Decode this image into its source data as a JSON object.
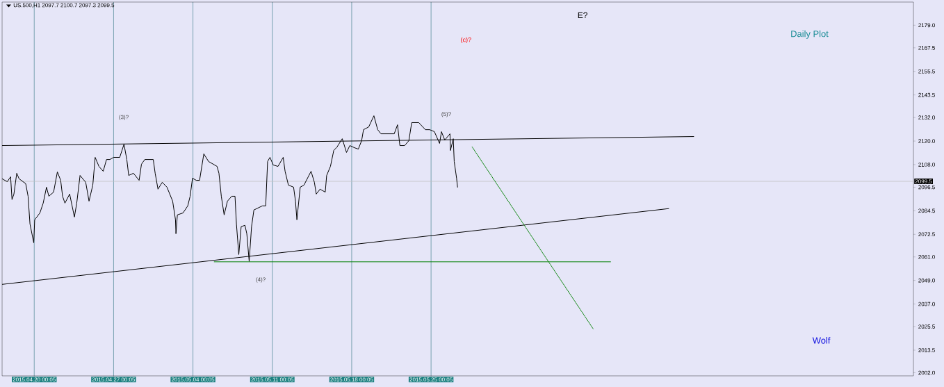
{
  "chart_data": {
    "type": "line",
    "title": "US.500,H1 2097.7 2100.7 2097.3 2099.5",
    "xlim": [
      "2015-04-17T04:05",
      "2015-07-06T13:05"
    ],
    "ylim": [
      2000.4,
      2190.8
    ],
    "xticks": [
      {
        "value": "2015-04-20T00:05",
        "label": "2015.04.20 00:05"
      },
      {
        "value": "2015-04-27T00:05",
        "label": "2015.04.27 00:05"
      },
      {
        "value": "2015-05-04T00:05",
        "label": "2015.05.04 00:05"
      },
      {
        "value": "2015-05-11T00:05",
        "label": "2015.05.11 00:05"
      },
      {
        "value": "2015-05-18T00:05",
        "label": "2015.05.18 00:05"
      },
      {
        "value": "2015-05-25T00:05",
        "label": "2015.05.25 00:05"
      }
    ],
    "yticks": [
      {
        "value": 2002,
        "label": "2002.0"
      },
      2013.5,
      2025.5,
      {
        "value": 2037,
        "label": "2037.0"
      },
      {
        "value": 2049,
        "label": "2049.0"
      },
      {
        "value": 2061,
        "label": "2061.0"
      },
      2072.5,
      2084.5,
      2096.5,
      {
        "value": 2108,
        "label": "2108.0"
      },
      {
        "value": 2120,
        "label": "2120.0"
      },
      {
        "value": 2132,
        "label": "2132.0"
      },
      2143.5,
      2155.5,
      2167.5,
      {
        "value": 2179,
        "label": "2179.0"
      }
    ],
    "grid": "x",
    "ref_lines": [
      {
        "axis": "y",
        "value": 2099.5,
        "label": "2099.5",
        "color": "#c0c0c0"
      }
    ],
    "annotations": [
      "(3)?",
      "(4)?",
      "(5)?",
      "(c)?",
      "E?",
      "Daily Plot",
      "Wolf"
    ],
    "series": [
      {
        "color": "#000000",
        "x": [
          "2015-04-17T04:05",
          "2015-04-17T15:05",
          "2015-04-17T22:05",
          "2015-04-18T01:05",
          "2015-04-18T05:05",
          "2015-04-18T11:05",
          "2015-04-18T16:05",
          "2015-04-19T06:05",
          "2015-04-19T11:05",
          "2015-04-19T15:05",
          "2015-04-19T23:05",
          "2015-04-20T01:05",
          "2015-04-20T12:05",
          "2015-04-20T19:05",
          "2015-04-21T02:05",
          "2015-04-21T07:05",
          "2015-04-21T17:05",
          "2015-04-22T01:05",
          "2015-04-22T08:05",
          "2015-04-22T12:05",
          "2015-04-22T17:05",
          "2015-04-23T03:05",
          "2015-04-23T10:05",
          "2015-04-23T13:05",
          "2015-04-23T18:05",
          "2015-04-24T01:05",
          "2015-04-24T13:05",
          "2015-04-24T20:05",
          "2015-04-25T04:05",
          "2015-04-25T09:05",
          "2015-04-25T17:05",
          "2015-04-26T02:05",
          "2015-04-26T09:05",
          "2015-04-26T16:05",
          "2015-04-27T00:05",
          "2015-04-27T13:05",
          "2015-04-27T22:05",
          "2015-04-28T04:05",
          "2015-04-28T08:05",
          "2015-04-28T18:05",
          "2015-04-29T06:05",
          "2015-04-29T11:05",
          "2015-04-29T18:05",
          "2015-04-30T12:05",
          "2015-04-30T16:05",
          "2015-04-30T22:05",
          "2015-05-01T07:05",
          "2015-05-01T17:05",
          "2015-05-02T05:05",
          "2015-05-02T11:05",
          "2015-05-02T12:05",
          "2015-05-02T15:05",
          "2015-05-03T03:05",
          "2015-05-03T13:05",
          "2015-05-03T18:05",
          "2015-05-03T23:05",
          "2015-05-04T07:05",
          "2015-05-04T14:05",
          "2015-05-04T23:05",
          "2015-05-05T09:05",
          "2015-05-06T03:05",
          "2015-05-06T07:05",
          "2015-05-06T12:05",
          "2015-05-06T18:05",
          "2015-05-07T01:05",
          "2015-05-07T10:05",
          "2015-05-07T17:05",
          "2015-05-07T20:05",
          "2015-05-08T01:05",
          "2015-05-08T06:05",
          "2015-05-08T14:05",
          "2015-05-08T18:05",
          "2015-05-08T23:05",
          "2015-05-09T04:05",
          "2015-05-09T09:05",
          "2015-05-10T03:05",
          "2015-05-10T10:05",
          "2015-05-10T14:05",
          "2015-05-10T19:05",
          "2015-05-11T02:05",
          "2015-05-11T12:05",
          "2015-05-11T23:05",
          "2015-05-12T03:05",
          "2015-05-12T10:05",
          "2015-05-12T21:05",
          "2015-05-13T01:05",
          "2015-05-13T04:05",
          "2015-05-13T11:05",
          "2015-05-13T19:05",
          "2015-05-14T10:05",
          "2015-05-14T17:05",
          "2015-05-14T21:05",
          "2015-05-15T05:05",
          "2015-05-15T16:05",
          "2015-05-15T19:05",
          "2015-05-16T03:05",
          "2015-05-16T10:05",
          "2015-05-16T17:05",
          "2015-05-17T04:05",
          "2015-05-17T13:05",
          "2015-05-17T20:05",
          "2015-05-18T06:05",
          "2015-05-18T14:05",
          "2015-05-18T21:05",
          "2015-05-19T01:05",
          "2015-05-19T12:05",
          "2015-05-19T23:05",
          "2015-05-20T07:05",
          "2015-05-20T14:05",
          "2015-05-21T05:05",
          "2015-05-21T18:05",
          "2015-05-22T01:05",
          "2015-05-22T06:05",
          "2015-05-22T16:05",
          "2015-05-23T01:05",
          "2015-05-23T07:05",
          "2015-05-23T22:05",
          "2015-05-24T12:05",
          "2015-05-24T21:05",
          "2015-05-25T07:05",
          "2015-05-25T18:05",
          "2015-05-25T22:05",
          "2015-05-26T05:05",
          "2015-05-26T16:05",
          "2015-05-26T17:05",
          "2015-05-26T23:05",
          "2015-05-27T01:05",
          "2015-05-27T06:05",
          "2015-05-27T08:05"
        ],
        "values": [
          2100.8,
          2099.3,
          2101.8,
          2090.2,
          2093.0,
          2103.6,
          2100.8,
          2098.3,
          2091.9,
          2077.8,
          2068.2,
          2079.9,
          2083.4,
          2088.4,
          2096.5,
          2091.9,
          2094.0,
          2104.3,
          2100.0,
          2091.9,
          2088.4,
          2093.0,
          2084.9,
          2081.3,
          2088.4,
          2102.5,
          2099.0,
          2089.4,
          2097.6,
          2111.7,
          2107.1,
          2104.6,
          2110.6,
          2110.6,
          2111.7,
          2111.7,
          2118.4,
          2110.6,
          2102.5,
          2103.6,
          2100.0,
          2108.2,
          2110.6,
          2110.6,
          2103.6,
          2095.5,
          2099.0,
          2096.5,
          2089.4,
          2079.9,
          2072.8,
          2082.4,
          2083.4,
          2087.0,
          2091.9,
          2101.1,
          2100.0,
          2100.0,
          2113.5,
          2109.6,
          2107.1,
          2103.6,
          2091.9,
          2082.4,
          2089.4,
          2091.9,
          2091.9,
          2077.8,
          2062.2,
          2076.4,
          2077.1,
          2072.8,
          2058.7,
          2076.4,
          2084.9,
          2087.0,
          2087.0,
          2109.6,
          2111.7,
          2107.8,
          2107.1,
          2111.7,
          2104.6,
          2097.6,
          2096.5,
          2089.4,
          2079.9,
          2096.5,
          2097.6,
          2104.6,
          2099.0,
          2093.0,
          2095.5,
          2094.0,
          2102.5,
          2107.1,
          2115.2,
          2117.0,
          2121.2,
          2114.2,
          2117.7,
          2116.6,
          2115.9,
          2120.2,
          2125.8,
          2127.2,
          2132.9,
          2125.8,
          2123.7,
          2123.7,
          2123.7,
          2128.3,
          2117.7,
          2117.7,
          2120.2,
          2129.4,
          2129.4,
          2125.8,
          2125.8,
          2124.8,
          2118.8,
          2124.8,
          2120.5,
          2123.7,
          2115.2,
          2121.2,
          2109.6,
          2101.1,
          2096.5
        ]
      },
      {
        "color": "#000000",
        "x": [
          "2015-04-17T04:05",
          "2015-06-17T04:05"
        ],
        "values": [
          2117.7,
          2122.3
        ]
      },
      {
        "color": "#000000",
        "x": [
          "2015-04-17T04:05",
          "2015-06-14T23:05"
        ],
        "values": [
          2047.0,
          2085.6
        ]
      },
      {
        "color": "#008000",
        "x": [
          "2015-05-05T21:05",
          "2015-06-09T20:05"
        ],
        "values": [
          2058.5,
          2058.5
        ]
      },
      {
        "color": "#008000",
        "x": [
          "2015-05-28T15:05",
          "2015-06-08T07:05"
        ],
        "values": [
          2117.0,
          2024.4
        ],
        "line_style": "dotted"
      }
    ]
  }
}
